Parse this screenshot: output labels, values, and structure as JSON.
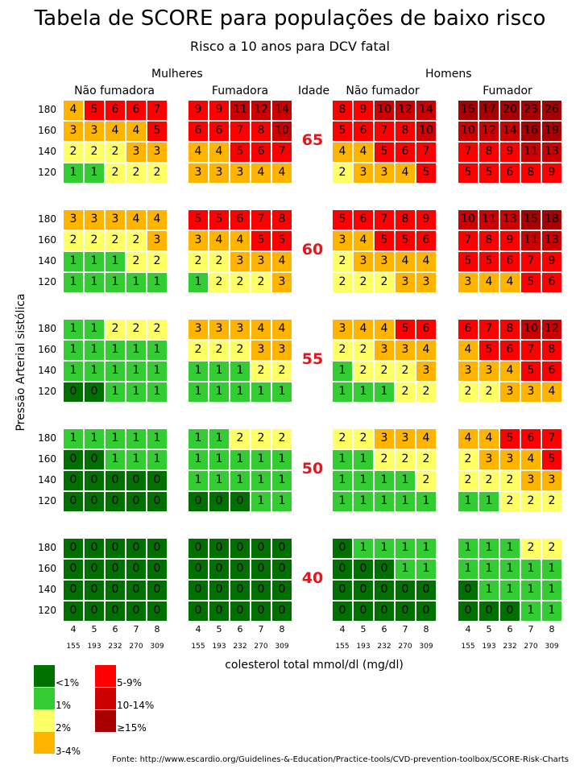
{
  "chart_data": {
    "type": "table",
    "title": "Tabela de SCORE para populações de baixo risco",
    "subtitle": "Risco a 10 anos para DCV fatal",
    "ylabel": "Pressão Arterial sistólica",
    "xlabel": "colesterol total mmol/dl (mg/dl)",
    "groups": {
      "women": "Mulheres",
      "men": "Homens"
    },
    "age_header": "Idade",
    "panels": [
      "Não fumadora",
      "Fumadora",
      "Não fumador",
      "Fumador"
    ],
    "systolic_rows": [
      "180",
      "160",
      "140",
      "120"
    ],
    "cholesterol_mmol": [
      "4",
      "5",
      "6",
      "7",
      "8"
    ],
    "cholesterol_mgdl": [
      "155",
      "193",
      "232",
      "270",
      "309"
    ],
    "ages": [
      {
        "age": "65",
        "panels": [
          [
            [
              4,
              5,
              6,
              6,
              7
            ],
            [
              3,
              3,
              4,
              4,
              5
            ],
            [
              2,
              2,
              2,
              3,
              3
            ],
            [
              1,
              1,
              2,
              2,
              2
            ]
          ],
          [
            [
              9,
              9,
              11,
              12,
              14
            ],
            [
              6,
              6,
              7,
              8,
              10
            ],
            [
              4,
              4,
              5,
              6,
              7
            ],
            [
              3,
              3,
              3,
              4,
              4
            ]
          ],
          [
            [
              8,
              9,
              10,
              12,
              14
            ],
            [
              5,
              6,
              7,
              8,
              10
            ],
            [
              4,
              4,
              5,
              6,
              7
            ],
            [
              2,
              3,
              3,
              4,
              5
            ]
          ],
          [
            [
              15,
              17,
              20,
              23,
              26
            ],
            [
              10,
              12,
              14,
              16,
              19
            ],
            [
              7,
              8,
              9,
              11,
              13
            ],
            [
              5,
              5,
              6,
              8,
              9
            ]
          ]
        ]
      },
      {
        "age": "60",
        "panels": [
          [
            [
              3,
              3,
              3,
              4,
              4
            ],
            [
              2,
              2,
              2,
              2,
              3
            ],
            [
              1,
              1,
              1,
              2,
              2
            ],
            [
              1,
              1,
              1,
              1,
              1
            ]
          ],
          [
            [
              5,
              5,
              6,
              7,
              8
            ],
            [
              3,
              4,
              4,
              5,
              5
            ],
            [
              2,
              2,
              3,
              3,
              4
            ],
            [
              1,
              2,
              2,
              2,
              3
            ]
          ],
          [
            [
              5,
              6,
              7,
              8,
              9
            ],
            [
              3,
              4,
              5,
              5,
              6
            ],
            [
              2,
              3,
              3,
              4,
              4
            ],
            [
              2,
              2,
              2,
              3,
              3
            ]
          ],
          [
            [
              10,
              11,
              13,
              15,
              18
            ],
            [
              7,
              8,
              9,
              11,
              13
            ],
            [
              5,
              5,
              6,
              7,
              9
            ],
            [
              3,
              4,
              4,
              5,
              6
            ]
          ]
        ]
      },
      {
        "age": "55",
        "panels": [
          [
            [
              1,
              1,
              2,
              2,
              2
            ],
            [
              1,
              1,
              1,
              1,
              1
            ],
            [
              1,
              1,
              1,
              1,
              1
            ],
            [
              0,
              0,
              1,
              1,
              1
            ]
          ],
          [
            [
              3,
              3,
              3,
              4,
              4
            ],
            [
              2,
              2,
              2,
              3,
              3
            ],
            [
              1,
              1,
              1,
              2,
              2
            ],
            [
              1,
              1,
              1,
              1,
              1
            ]
          ],
          [
            [
              3,
              4,
              4,
              5,
              6
            ],
            [
              2,
              2,
              3,
              3,
              4
            ],
            [
              1,
              2,
              2,
              2,
              3
            ],
            [
              1,
              1,
              1,
              2,
              2
            ]
          ],
          [
            [
              6,
              7,
              8,
              10,
              12
            ],
            [
              4,
              5,
              6,
              7,
              8
            ],
            [
              3,
              3,
              4,
              5,
              6
            ],
            [
              2,
              2,
              3,
              3,
              4
            ]
          ]
        ]
      },
      {
        "age": "50",
        "panels": [
          [
            [
              1,
              1,
              1,
              1,
              1
            ],
            [
              0,
              0,
              1,
              1,
              1
            ],
            [
              0,
              0,
              0,
              0,
              0
            ],
            [
              0,
              0,
              0,
              0,
              0
            ]
          ],
          [
            [
              1,
              1,
              2,
              2,
              2
            ],
            [
              1,
              1,
              1,
              1,
              1
            ],
            [
              1,
              1,
              1,
              1,
              1
            ],
            [
              0,
              0,
              0,
              1,
              1
            ]
          ],
          [
            [
              2,
              2,
              3,
              3,
              4
            ],
            [
              1,
              1,
              2,
              2,
              2
            ],
            [
              1,
              1,
              1,
              1,
              2
            ],
            [
              1,
              1,
              1,
              1,
              1
            ]
          ],
          [
            [
              4,
              4,
              5,
              6,
              7
            ],
            [
              2,
              3,
              3,
              4,
              5
            ],
            [
              2,
              2,
              2,
              3,
              3
            ],
            [
              1,
              1,
              2,
              2,
              2
            ]
          ]
        ]
      },
      {
        "age": "40",
        "panels": [
          [
            [
              0,
              0,
              0,
              0,
              0
            ],
            [
              0,
              0,
              0,
              0,
              0
            ],
            [
              0,
              0,
              0,
              0,
              0
            ],
            [
              0,
              0,
              0,
              0,
              0
            ]
          ],
          [
            [
              0,
              0,
              0,
              0,
              0
            ],
            [
              0,
              0,
              0,
              0,
              0
            ],
            [
              0,
              0,
              0,
              0,
              0
            ],
            [
              0,
              0,
              0,
              0,
              0
            ]
          ],
          [
            [
              0,
              1,
              1,
              1,
              1
            ],
            [
              0,
              0,
              0,
              1,
              1
            ],
            [
              0,
              0,
              0,
              0,
              0
            ],
            [
              0,
              0,
              0,
              0,
              0
            ]
          ],
          [
            [
              1,
              1,
              1,
              2,
              2
            ],
            [
              1,
              1,
              1,
              1,
              1
            ],
            [
              0,
              1,
              1,
              1,
              1
            ],
            [
              0,
              0,
              0,
              1,
              1
            ]
          ]
        ]
      }
    ],
    "legend": [
      {
        "label": "<1%",
        "color": "#007000"
      },
      {
        "label": "1%",
        "color": "#33cc33"
      },
      {
        "label": "2%",
        "color": "#ffff66"
      },
      {
        "label": "3-4%",
        "color": "#ffb400"
      },
      {
        "label": "5-9%",
        "color": "#ff0000"
      },
      {
        "label": "10-14%",
        "color": "#cc0000"
      },
      {
        "label": "≥15%",
        "color": "#a80000"
      }
    ],
    "age_label_color": "#e8141c"
  },
  "source": "Fonte: http://www.escardio.org/Guidelines-&-Education/Practice-tools/CVD-prevention-toolbox/SCORE-Risk-Charts"
}
